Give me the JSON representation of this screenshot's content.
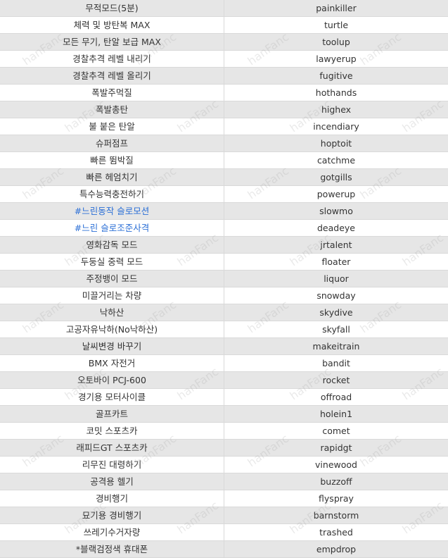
{
  "rows": [
    {
      "effect": "무적모드(5분)",
      "code": "painkiller"
    },
    {
      "effect": "체력 및 방탄복 MAX",
      "code": "turtle"
    },
    {
      "effect": "모든 무기, 탄알 보급 MAX",
      "code": "toolup"
    },
    {
      "effect": "경찰추격 레벨 내리기",
      "code": "lawyerup"
    },
    {
      "effect": "경찰추격 레벨 올리기",
      "code": "fugitive"
    },
    {
      "effect": "폭발주먹질",
      "code": "hothands"
    },
    {
      "effect": "폭발총탄",
      "code": "highex"
    },
    {
      "effect": "불 붙은 탄알",
      "code": "incendiary"
    },
    {
      "effect": "슈퍼점프",
      "code": "hoptoit"
    },
    {
      "effect": "빠른 뜀박질",
      "code": "catchme"
    },
    {
      "effect": "빠른 헤엄치기",
      "code": "gotgills"
    },
    {
      "effect": "특수능력충전하기",
      "code": "powerup"
    },
    {
      "effect": "#느린동작 슬로모션",
      "code": "slowmo",
      "highlight": true
    },
    {
      "effect": "#느린 슬로조준사격",
      "code": "deadeye",
      "highlight": true
    },
    {
      "effect": "영화감독 모드",
      "code": "jrtalent"
    },
    {
      "effect": "두둥실 중력 모드",
      "code": "floater"
    },
    {
      "effect": "주정뱅이 모드",
      "code": "liquor"
    },
    {
      "effect": "미끌거리는 차량",
      "code": "snowday"
    },
    {
      "effect": "낙하산",
      "code": "skydive"
    },
    {
      "effect": "고공자유낙하(No낙하산)",
      "code": "skyfall"
    },
    {
      "effect": "날씨변경 바꾸기",
      "code": "makeitrain"
    },
    {
      "effect": "BMX 자전거",
      "code": "bandit"
    },
    {
      "effect": "오토바이 PCJ-600",
      "code": "rocket"
    },
    {
      "effect": "경기용 모터사이클",
      "code": "offroad"
    },
    {
      "effect": "골프카트",
      "code": "holein1"
    },
    {
      "effect": "코밋 스포츠카",
      "code": "comet"
    },
    {
      "effect": "래피드GT 스포츠카",
      "code": "rapidgt"
    },
    {
      "effect": "리무진 대령하기",
      "code": "vinewood"
    },
    {
      "effect": "공격용 헬기",
      "code": "buzzoff"
    },
    {
      "effect": "경비행기",
      "code": "flyspray"
    },
    {
      "effect": "묘기용 경비행기",
      "code": "barnstorm"
    },
    {
      "effect": "쓰레기수거자량",
      "code": "trashed"
    },
    {
      "effect": "*블랙검정색 휴대폰",
      "code": "empdrop"
    }
  ],
  "watermark": "hanFanc",
  "colors": {
    "highlight_text": "#2b6fd6",
    "stripe": "#e6e6e6",
    "border": "#d9d9d9"
  }
}
